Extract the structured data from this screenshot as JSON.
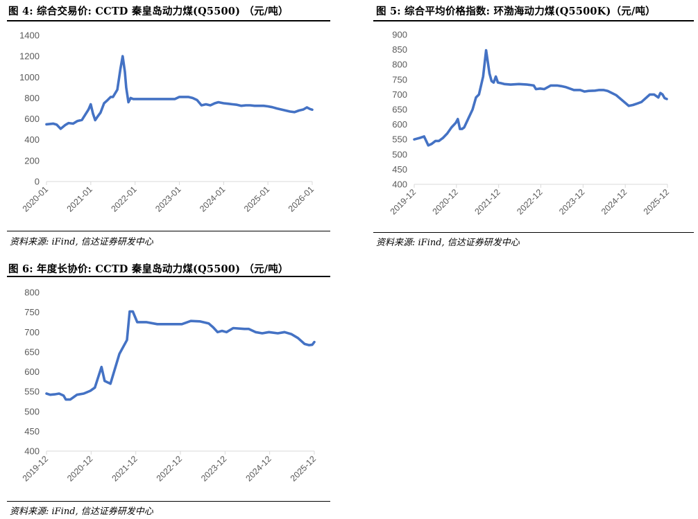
{
  "charts": {
    "fig4": {
      "title": "图 4: 综合交易价: CCTD 秦皇岛动力煤(Q5500) （元/吨）",
      "source": "资料来源: iFind, 信达证券研发中心"
    },
    "fig5": {
      "title": "图 5: 综合平均价格指数: 环渤海动力煤(Q5500K)（元/吨）",
      "source": "资料来源: iFind, 信达证券研发中心"
    },
    "fig6": {
      "title": "图 6: 年度长协价: CCTD 秦皇岛动力煤(Q5500) （元/吨）",
      "source": "资料来源: iFind, 信达证券研发中心"
    }
  },
  "chart_data": [
    {
      "id": "fig4",
      "type": "line",
      "title": "综合交易价: CCTD 秦皇岛动力煤(Q5500)",
      "unit": "元/吨",
      "ylim": [
        0,
        1400
      ],
      "yticks": [
        0,
        200,
        400,
        600,
        800,
        1000,
        1200,
        1400
      ],
      "xlim": [
        2020.0,
        2026.0
      ],
      "xticks": [
        {
          "value": 2020.0,
          "label": "2020-01"
        },
        {
          "value": 2021.0,
          "label": "2021-01"
        },
        {
          "value": 2022.0,
          "label": "2022-01"
        },
        {
          "value": 2023.0,
          "label": "2023-01"
        },
        {
          "value": 2024.0,
          "label": "2024-01"
        },
        {
          "value": 2025.0,
          "label": "2025-01"
        },
        {
          "value": 2026.0,
          "label": "2026-01"
        }
      ],
      "series": [
        {
          "name": "CCTD 秦皇岛动力煤(Q5500) 综合交易价",
          "color": "#4472c4",
          "x": [
            2020.0,
            2020.15,
            2020.23,
            2020.32,
            2020.42,
            2020.5,
            2020.6,
            2020.7,
            2020.8,
            2020.95,
            2021.0,
            2021.05,
            2021.1,
            2021.15,
            2021.22,
            2021.3,
            2021.38,
            2021.45,
            2021.5,
            2021.6,
            2021.67,
            2021.72,
            2021.77,
            2021.8,
            2021.85,
            2021.9,
            2021.96,
            2022.05,
            2022.15,
            2022.3,
            2022.5,
            2022.7,
            2022.9,
            2023.0,
            2023.1,
            2023.2,
            2023.3,
            2023.4,
            2023.5,
            2023.6,
            2023.7,
            2023.8,
            2023.88,
            2024.0,
            2024.1,
            2024.2,
            2024.3,
            2024.4,
            2024.5,
            2024.6,
            2024.7,
            2024.8,
            2024.9,
            2025.0,
            2025.1,
            2025.2,
            2025.3,
            2025.4,
            2025.5,
            2025.6,
            2025.7,
            2025.8,
            2025.88,
            2025.95,
            2026.0
          ],
          "values": [
            548,
            555,
            545,
            505,
            540,
            560,
            555,
            580,
            590,
            690,
            740,
            650,
            588,
            620,
            660,
            750,
            780,
            810,
            810,
            880,
            1080,
            1200,
            1050,
            900,
            760,
            800,
            790,
            790,
            790,
            790,
            790,
            790,
            790,
            810,
            810,
            810,
            800,
            780,
            730,
            740,
            730,
            750,
            760,
            750,
            745,
            740,
            735,
            725,
            730,
            730,
            725,
            725,
            725,
            720,
            712,
            700,
            690,
            680,
            670,
            665,
            680,
            690,
            710,
            695,
            688
          ]
        }
      ]
    },
    {
      "id": "fig5",
      "type": "line",
      "title": "综合平均价格指数: 环渤海动力煤(Q5500K)",
      "unit": "元/吨",
      "ylim": [
        400,
        900
      ],
      "yticks": [
        400,
        450,
        500,
        550,
        600,
        650,
        700,
        750,
        800,
        850,
        900
      ],
      "xlim": [
        2019.917,
        2025.917
      ],
      "xticks": [
        {
          "value": 2019.917,
          "label": "2019-12"
        },
        {
          "value": 2020.917,
          "label": "2020-12"
        },
        {
          "value": 2021.917,
          "label": "2021-12"
        },
        {
          "value": 2022.917,
          "label": "2022-12"
        },
        {
          "value": 2023.917,
          "label": "2023-12"
        },
        {
          "value": 2024.917,
          "label": "2024-12"
        },
        {
          "value": 2025.917,
          "label": "2025-12"
        }
      ],
      "series": [
        {
          "name": "环渤海动力煤(Q5500K) 综合平均价格指数",
          "color": "#4472c4",
          "x": [
            2019.917,
            2020.05,
            2020.15,
            2020.25,
            2020.33,
            2020.42,
            2020.5,
            2020.6,
            2020.7,
            2020.8,
            2020.9,
            2020.95,
            2021.0,
            2021.05,
            2021.1,
            2021.2,
            2021.3,
            2021.38,
            2021.45,
            2021.55,
            2021.62,
            2021.7,
            2021.75,
            2021.8,
            2021.85,
            2021.9,
            2021.97,
            2022.05,
            2022.2,
            2022.4,
            2022.6,
            2022.75,
            2022.8,
            2022.9,
            2023.0,
            2023.15,
            2023.3,
            2023.4,
            2023.5,
            2023.7,
            2023.85,
            2023.95,
            2024.05,
            2024.2,
            2024.3,
            2024.4,
            2024.5,
            2024.6,
            2024.7,
            2024.85,
            2025.0,
            2025.1,
            2025.2,
            2025.3,
            2025.5,
            2025.6,
            2025.7,
            2025.75,
            2025.8,
            2025.85,
            2025.9
          ],
          "values": [
            550,
            555,
            560,
            530,
            535,
            545,
            545,
            555,
            570,
            590,
            605,
            618,
            585,
            585,
            590,
            620,
            650,
            690,
            700,
            760,
            848,
            770,
            745,
            740,
            760,
            740,
            738,
            735,
            733,
            735,
            733,
            730,
            718,
            720,
            718,
            730,
            730,
            728,
            725,
            715,
            715,
            710,
            712,
            713,
            715,
            715,
            712,
            705,
            698,
            680,
            662,
            665,
            670,
            675,
            700,
            700,
            690,
            705,
            700,
            688,
            685
          ]
        }
      ]
    },
    {
      "id": "fig6",
      "type": "line",
      "title": "年度长协价: CCTD 秦皇岛动力煤(Q5500)",
      "unit": "元/吨",
      "ylim": [
        400,
        800
      ],
      "yticks": [
        400,
        450,
        500,
        550,
        600,
        650,
        700,
        750,
        800
      ],
      "xlim": [
        2019.917,
        2025.917
      ],
      "xticks": [
        {
          "value": 2019.917,
          "label": "2019-12"
        },
        {
          "value": 2020.917,
          "label": "2020-12"
        },
        {
          "value": 2021.917,
          "label": "2021-12"
        },
        {
          "value": 2022.917,
          "label": "2022-12"
        },
        {
          "value": 2023.917,
          "label": "2023-12"
        },
        {
          "value": 2024.917,
          "label": "2024-12"
        },
        {
          "value": 2025.917,
          "label": "2025-12"
        }
      ],
      "series": [
        {
          "name": "CCTD 秦皇岛动力煤(Q5500) 年度长协价",
          "color": "#4472c4",
          "x": [
            2019.917,
            2020.0,
            2020.1,
            2020.2,
            2020.3,
            2020.35,
            2020.45,
            2020.55,
            2020.6,
            2020.75,
            2020.9,
            2021.0,
            2021.15,
            2021.22,
            2021.35,
            2021.55,
            2021.72,
            2021.78,
            2021.85,
            2021.95,
            2022.15,
            2022.4,
            2022.6,
            2022.85,
            2022.95,
            2023.15,
            2023.35,
            2023.55,
            2023.65,
            2023.75,
            2023.85,
            2023.95,
            2024.1,
            2024.35,
            2024.45,
            2024.6,
            2024.75,
            2024.9,
            2025.1,
            2025.25,
            2025.4,
            2025.55,
            2025.7,
            2025.8,
            2025.87,
            2025.917
          ],
          "values": [
            545,
            542,
            543,
            545,
            540,
            530,
            530,
            538,
            542,
            545,
            552,
            560,
            612,
            577,
            570,
            645,
            680,
            752,
            752,
            725,
            725,
            720,
            720,
            720,
            720,
            728,
            727,
            722,
            712,
            700,
            703,
            700,
            710,
            708,
            708,
            700,
            697,
            700,
            697,
            700,
            695,
            685,
            670,
            667,
            668,
            675
          ]
        }
      ]
    }
  ]
}
